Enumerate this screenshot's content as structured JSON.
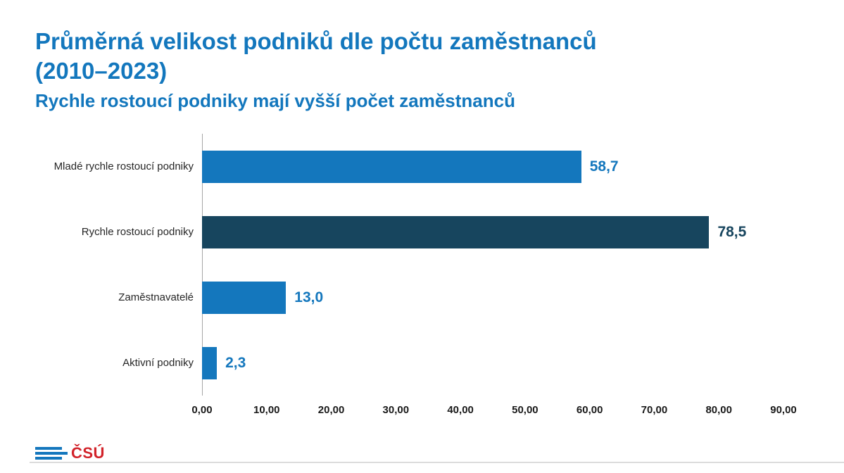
{
  "header": {
    "title_line1": "Průměrná velikost podniků dle počtu zaměstnanců",
    "title_line2": "(2010–2023)",
    "subtitle": "Rychle rostoucí podniky mají vyšší počet zaměstnanců",
    "title_color": "#1377BD"
  },
  "chart_data": {
    "type": "bar",
    "orientation": "horizontal",
    "title": "Průměrná velikost podniků dle počtu zaměstnanců (2010–2023)",
    "subtitle": "Rychle rostoucí podniky mají vyšší počet zaměstnanců",
    "categories": [
      "Mladé rychle rostoucí podniky",
      "Rychle rostoucí podniky",
      "Zaměstnavatelé",
      "Aktivní podniky"
    ],
    "values": [
      58.7,
      78.5,
      13.0,
      2.3
    ],
    "value_labels": [
      "58,7",
      "78,5",
      "13,0",
      "2,3"
    ],
    "bar_colors": [
      "#1477BD",
      "#17455E",
      "#1477BD",
      "#1477BD"
    ],
    "value_label_colors": [
      "#1477BD",
      "#17455E",
      "#1477BD",
      "#1477BD"
    ],
    "xlim": [
      0,
      90
    ],
    "x_tick_values": [
      0,
      10,
      20,
      30,
      40,
      50,
      60,
      70,
      80,
      90
    ],
    "x_tick_labels": [
      "0,00",
      "10,00",
      "20,00",
      "30,00",
      "40,00",
      "50,00",
      "60,00",
      "70,00",
      "80,00",
      "90,00"
    ],
    "grid": false,
    "legend": false,
    "axis_line_color": "#a6a6a6"
  },
  "footer": {
    "logo_text": "ČSÚ",
    "logo_text_color": "#D2232A",
    "logo_stripe_color": "#1477BD"
  }
}
